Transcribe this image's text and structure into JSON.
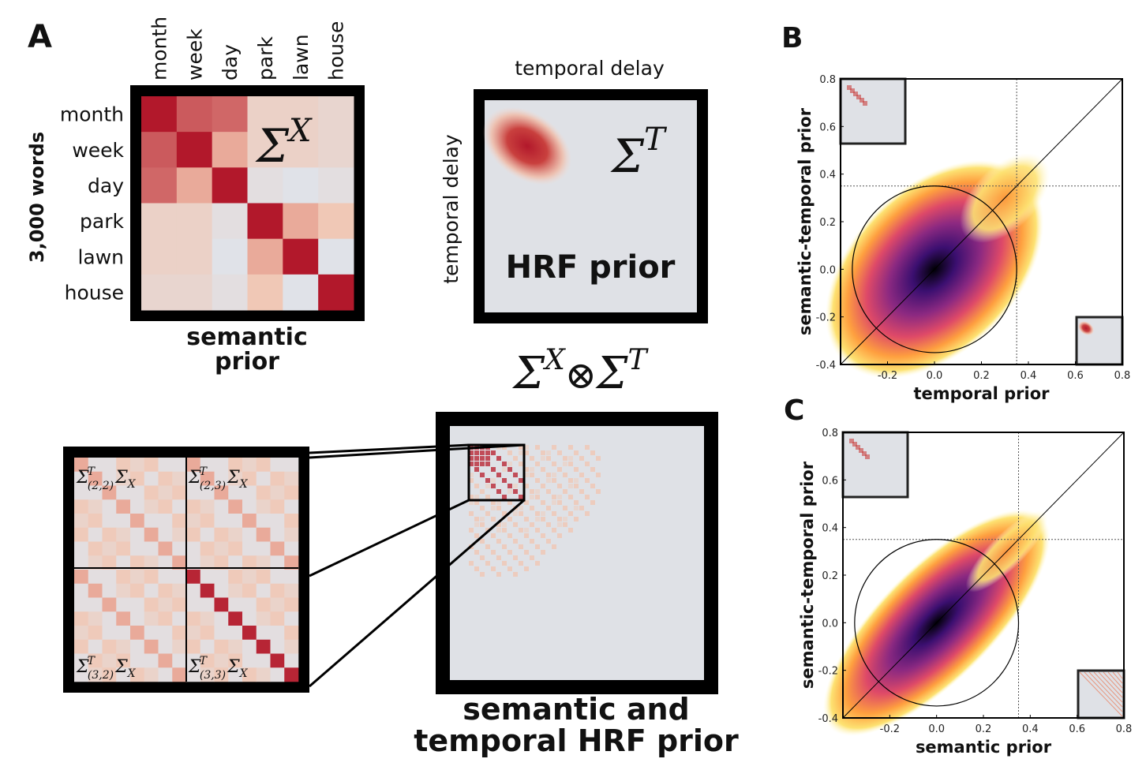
{
  "panel_a": {
    "label": "A",
    "semantic_matrix": {
      "row_axis_label": "3,000 words",
      "words": [
        "month",
        "week",
        "day",
        "park",
        "lawn",
        "house"
      ],
      "values": [
        [
          1.0,
          0.75,
          0.7,
          0.2,
          0.2,
          0.15
        ],
        [
          0.75,
          1.0,
          0.45,
          0.2,
          0.2,
          0.15
        ],
        [
          0.7,
          0.45,
          1.0,
          0.05,
          0.0,
          0.05
        ],
        [
          0.2,
          0.2,
          0.05,
          1.0,
          0.45,
          0.3
        ],
        [
          0.2,
          0.2,
          0.0,
          0.45,
          1.0,
          0.0
        ],
        [
          0.15,
          0.15,
          0.05,
          0.3,
          0.0,
          1.0
        ]
      ],
      "symbol": "Σ",
      "symbol_sup": "X",
      "caption": [
        "semantic",
        "prior"
      ]
    },
    "hrf": {
      "top_label": "temporal delay",
      "side_label": "temporal delay",
      "text": "HRF prior",
      "symbol": "Σ",
      "symbol_sup": "T"
    },
    "kronecker": [
      "Σ",
      "X",
      "⊗",
      "Σ",
      "T"
    ],
    "blocks": [
      {
        "sigma": "Σ",
        "sup": "T",
        "sub": "(2,2)",
        "tail": "Σ",
        "tail_sub": "X"
      },
      {
        "sigma": "Σ",
        "sup": "T",
        "sub": "(2,3)",
        "tail": "Σ",
        "tail_sub": "X"
      },
      {
        "sigma": "Σ",
        "sup": "T",
        "sub": "(3,2)",
        "tail": "Σ",
        "tail_sub": "X"
      },
      {
        "sigma": "Σ",
        "sup": "T",
        "sub": "(3,3)",
        "tail": "Σ",
        "tail_sub": "X"
      }
    ],
    "caption": [
      "semantic and",
      "temporal HRF prior"
    ]
  },
  "chart_data": [
    {
      "type": "hist2d",
      "panel": "B",
      "x_label": "temporal prior",
      "y_label": "semantic-temporal prior",
      "xlim": [
        -0.4,
        0.8
      ],
      "ylim": [
        -0.4,
        0.8
      ],
      "xticks": [
        -0.2,
        {
          "value": 0,
          "label": "0.0"
        },
        0.2,
        0.4,
        0.6,
        0.8
      ],
      "yticks": [
        -0.4,
        -0.2,
        {
          "value": 0,
          "label": "0.0"
        },
        0.2,
        0.4,
        0.6,
        0.8
      ],
      "threshold": 0.35,
      "circle_radius": 0.35
    },
    {
      "type": "hist2d",
      "panel": "C",
      "x_label": "semantic prior",
      "y_label": "semantic-temporal prior",
      "xlim": [
        -0.4,
        0.8
      ],
      "ylim": [
        -0.4,
        0.8
      ],
      "xticks": [
        -0.2,
        {
          "value": 0,
          "label": "0.0"
        },
        0.2,
        0.4,
        0.6,
        0.8
      ],
      "yticks": [
        -0.4,
        -0.2,
        {
          "value": 0,
          "label": "0.0"
        },
        0.2,
        0.4,
        0.6,
        0.8
      ],
      "threshold": 0.35,
      "circle_radius": 0.35
    }
  ]
}
